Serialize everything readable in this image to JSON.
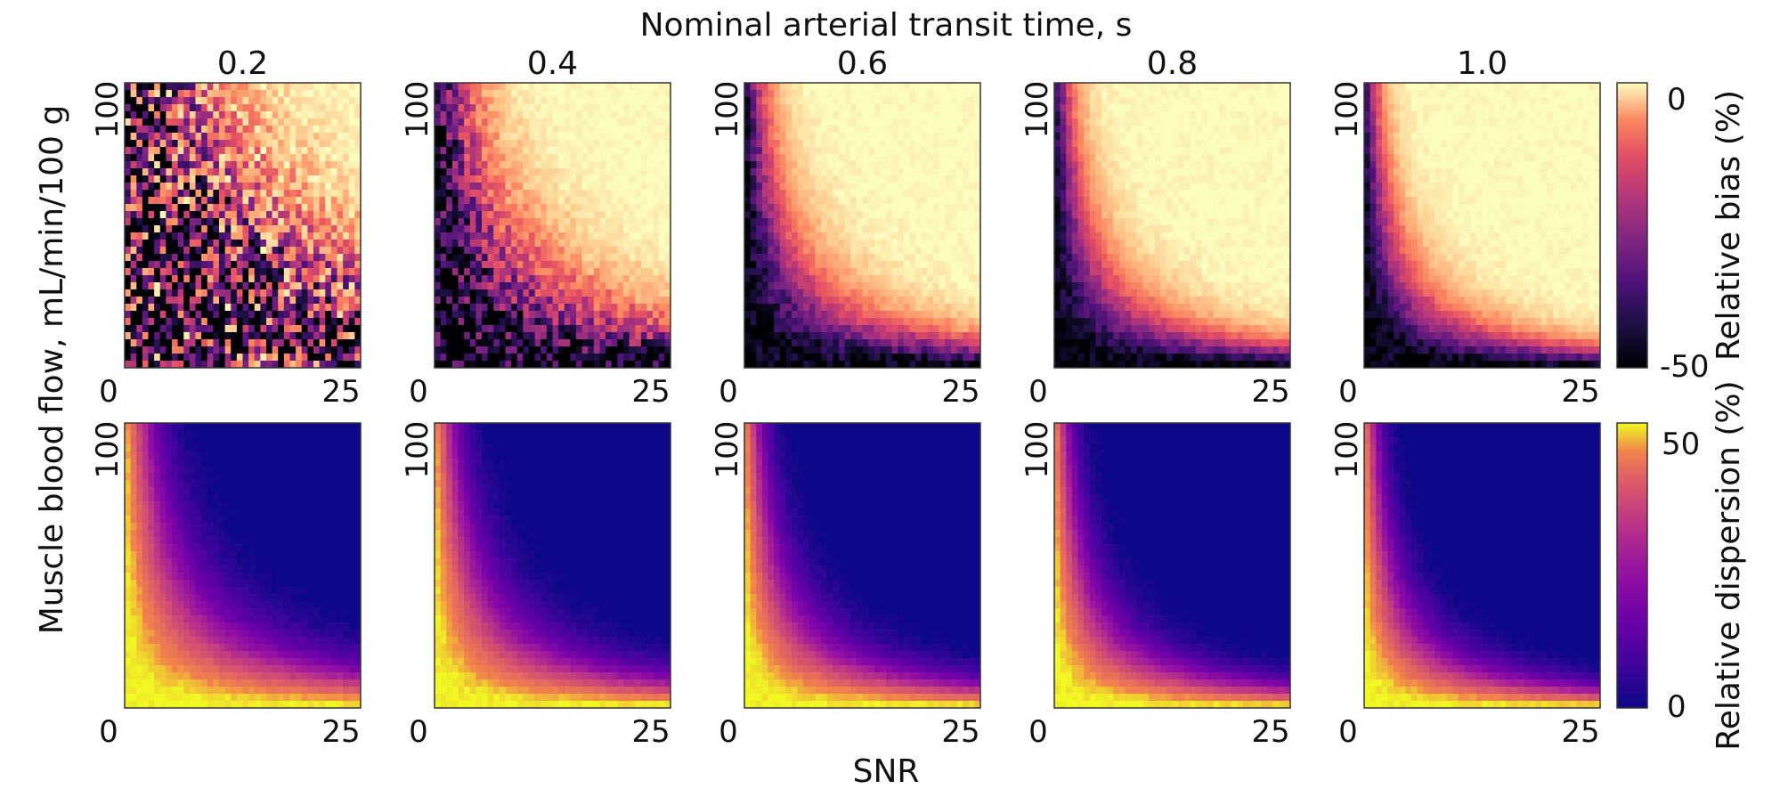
{
  "chart_data": {
    "type": "heatmap",
    "title": "Nominal arterial transit time, s",
    "xlabel": "SNR",
    "ylabel": "Muscle blood flow, mL/min/100 g",
    "xlim": [
      0,
      27
    ],
    "ylim": [
      0,
      100
    ],
    "x_ticks": [
      "0",
      "25"
    ],
    "y_ticks": [
      "0",
      "100"
    ],
    "transit_times": [
      "0.2",
      "0.4",
      "0.6",
      "0.8",
      "1.0"
    ],
    "rows": [
      {
        "metric": "bias",
        "colorbar_label": "Relative bias (%)",
        "colorbar_ticks": [
          "0",
          "-50"
        ],
        "range": [
          -50,
          0
        ],
        "colormap": "magma",
        "boundary_strength": [
          5,
          10,
          16,
          19,
          22
        ],
        "noise_level": [
          0.9,
          0.4,
          0.15,
          0.1,
          0.1
        ]
      },
      {
        "metric": "dispersion",
        "colorbar_label": "Relative dispersion (%)",
        "colorbar_ticks": [
          "50",
          "0"
        ],
        "range": [
          0,
          50
        ],
        "colormap": "plasma",
        "boundary_strength": [
          12,
          15,
          18,
          20,
          22
        ],
        "noise_level": [
          0.05,
          0.05,
          0.05,
          0.05,
          0.05
        ]
      }
    ]
  }
}
